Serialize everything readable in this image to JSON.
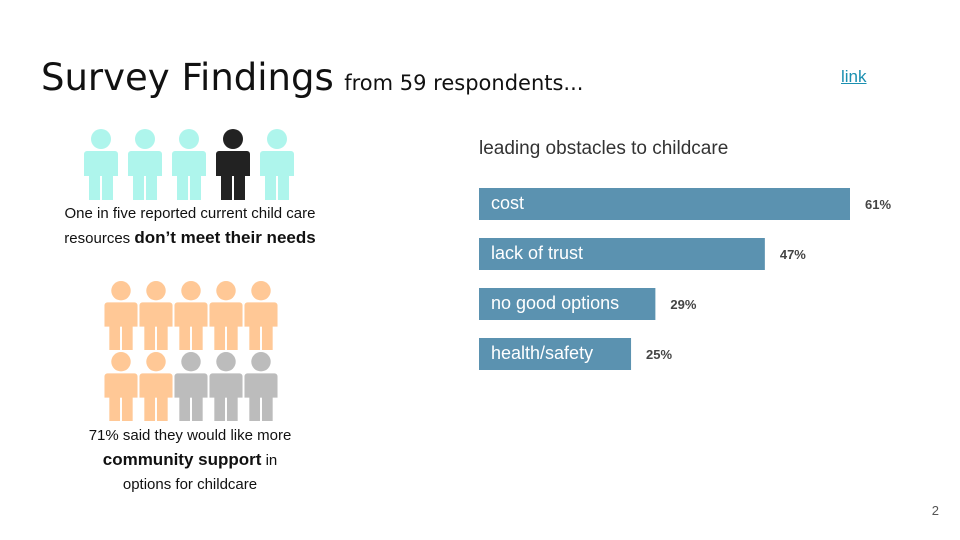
{
  "title": {
    "main": "Survey Findings",
    "sub": "from 59 respondents..."
  },
  "link_label": "link",
  "page_number": "2",
  "colors": {
    "teal": "#aef5ec",
    "black": "#222222",
    "peach": "#ffc896",
    "gray": "#bcbcbc",
    "bar": "#5b92b0"
  },
  "group1": {
    "people": [
      "teal",
      "teal",
      "teal",
      "black",
      "teal"
    ],
    "caption_line1": "One in five reported current child care",
    "caption_pre": "resources",
    "caption_bold": "don’t meet their needs"
  },
  "group2": {
    "people": [
      "peach",
      "peach",
      "peach",
      "peach",
      "peach",
      "peach",
      "peach",
      "gray",
      "gray",
      "gray"
    ],
    "caption_line1": "71% said they would like more",
    "caption_bold": "community support",
    "caption_post": "in",
    "caption_line3": "options for childcare"
  },
  "chart_data": {
    "type": "bar",
    "orientation": "horizontal",
    "title": "leading obstacles to childcare",
    "categories": [
      "cost",
      "lack of trust",
      "no good options",
      "health/safety"
    ],
    "values": [
      61,
      47,
      29,
      25
    ],
    "value_labels": [
      "61%",
      "47%",
      "29%",
      "25%"
    ],
    "unit": "%",
    "xlim": [
      0,
      61
    ],
    "grid": false,
    "legend": "none"
  }
}
